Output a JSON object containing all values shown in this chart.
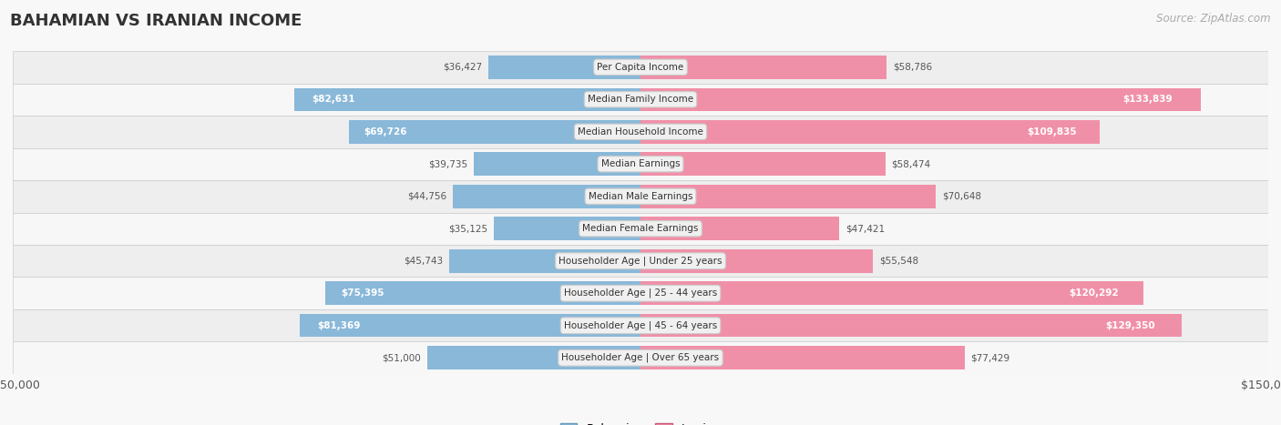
{
  "title": "BAHAMIAN VS IRANIAN INCOME",
  "source": "Source: ZipAtlas.com",
  "categories": [
    "Per Capita Income",
    "Median Family Income",
    "Median Household Income",
    "Median Earnings",
    "Median Male Earnings",
    "Median Female Earnings",
    "Householder Age | Under 25 years",
    "Householder Age | 25 - 44 years",
    "Householder Age | 45 - 64 years",
    "Householder Age | Over 65 years"
  ],
  "bahamian": [
    36427,
    82631,
    69726,
    39735,
    44756,
    35125,
    45743,
    75395,
    81369,
    51000
  ],
  "iranian": [
    58786,
    133839,
    109835,
    58474,
    70648,
    47421,
    55548,
    120292,
    129350,
    77429
  ],
  "bahamian_color": "#89b8d9",
  "iranian_color": "#f090a8",
  "max_value": 150000,
  "row_colors": [
    "#eeeeee",
    "#f7f7f7"
  ],
  "legend_bahamian": "Bahamian",
  "legend_iranian": "Iranian",
  "bar_height": 0.72
}
